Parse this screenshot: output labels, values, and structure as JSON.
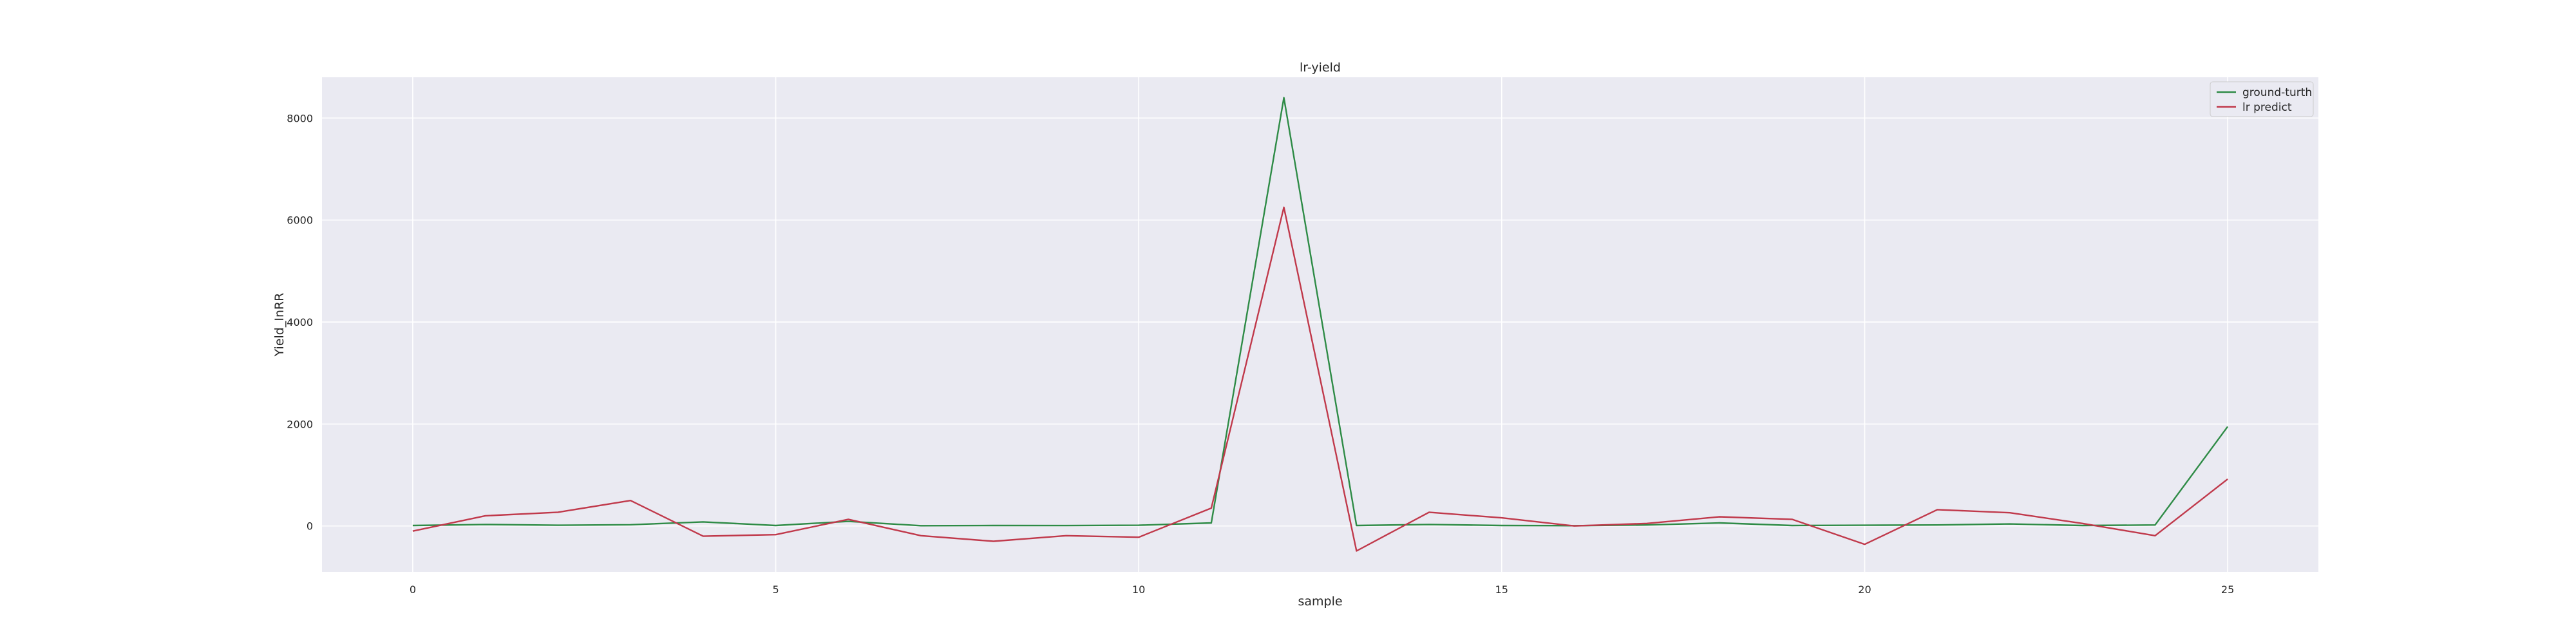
{
  "chart_data": {
    "type": "line",
    "title": "lr-yield",
    "xlabel": "sample",
    "ylabel": "Yield_InRR",
    "xlim": [
      -1.25,
      26.25
    ],
    "ylim": [
      -900,
      8800
    ],
    "xticks": [
      0,
      5,
      10,
      15,
      20,
      25
    ],
    "yticks": [
      0,
      2000,
      4000,
      6000,
      8000
    ],
    "grid": true,
    "legend_position": "top-right",
    "x": [
      0,
      1,
      2,
      3,
      4,
      5,
      6,
      7,
      8,
      9,
      10,
      11,
      12,
      13,
      14,
      15,
      16,
      17,
      18,
      19,
      20,
      21,
      22,
      23,
      24,
      25
    ],
    "series": [
      {
        "name": "ground-turth",
        "color": "#2e8b46",
        "values": [
          10,
          30,
          15,
          25,
          80,
          10,
          90,
          5,
          10,
          8,
          15,
          60,
          8400,
          10,
          30,
          10,
          5,
          20,
          60,
          10,
          15,
          20,
          40,
          10,
          20,
          1950
        ]
      },
      {
        "name": "lr predict",
        "color": "#c0394b",
        "values": [
          -100,
          200,
          270,
          500,
          -200,
          -170,
          130,
          -190,
          -300,
          -190,
          -220,
          350,
          6250,
          -490,
          270,
          160,
          0,
          50,
          180,
          130,
          -360,
          320,
          260,
          50,
          -190,
          920
        ]
      }
    ]
  }
}
